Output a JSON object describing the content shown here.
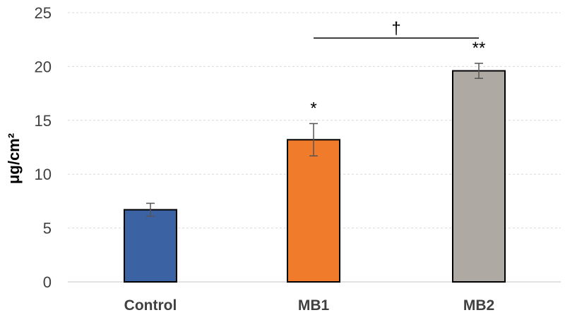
{
  "chart_data": {
    "type": "bar",
    "title": "",
    "xlabel": "",
    "ylabel": "μg/cm²",
    "ylim": [
      0,
      25
    ],
    "yticks": [
      0,
      5,
      10,
      15,
      20,
      25
    ],
    "grid": "horizontal-dashed",
    "categories": [
      "Control",
      "MB1",
      "MB2"
    ],
    "values": [
      6.7,
      13.2,
      19.6
    ],
    "errors": [
      0.6,
      1.5,
      0.7
    ],
    "colors": [
      "#3b63a4",
      "#f07b2a",
      "#afa9a4"
    ],
    "annotations": [
      "",
      "*",
      "**"
    ],
    "bracket": {
      "from": "MB1",
      "to": "MB2",
      "label": "†",
      "y": 23.3
    }
  }
}
